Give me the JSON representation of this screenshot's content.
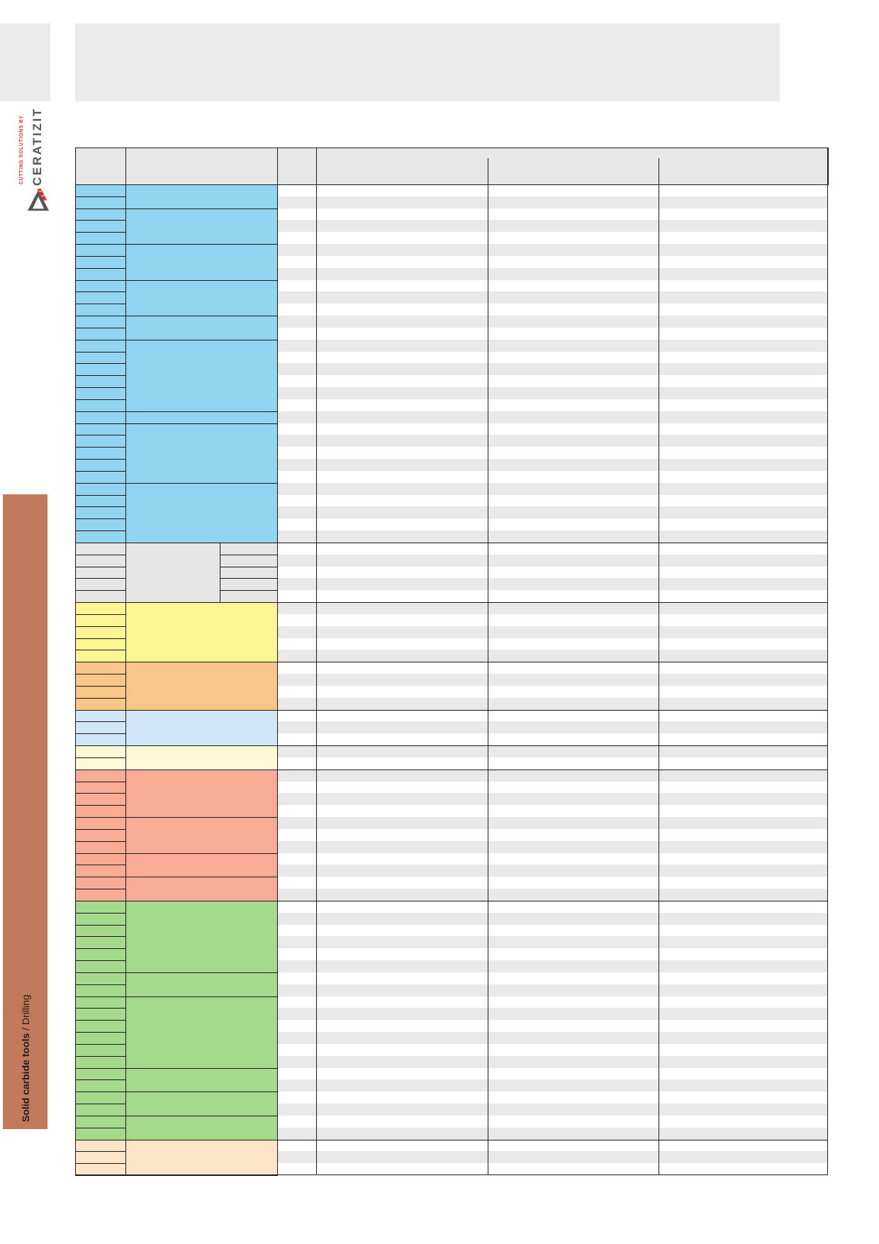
{
  "brand": {
    "tagline": "CUTTING SOLUTIONS BY",
    "name": "CERATIZIT",
    "tagline_color": "#e63329",
    "name_color": "#55565a"
  },
  "sidebar": {
    "label_bold": "Solid carbide tools",
    "label_regular": " / Drilling",
    "color": "#c27a5d",
    "text_color": "#1d1d1b"
  },
  "palette": {
    "page_background": "#ffffff",
    "panel_gray": "#ebebeb",
    "header_gray": "#e7e7e7",
    "stripe_gray": "#e9e9e9",
    "border": "#1a1a1a"
  },
  "table": {
    "columns": 6,
    "header_labels": [
      "",
      "",
      "",
      ""
    ],
    "body_rows": 83,
    "sections": [
      {
        "id": "blue",
        "color": "#93d4f1",
        "row_groups": [
          2,
          3,
          3,
          3,
          2,
          6,
          1,
          5,
          5
        ]
      },
      {
        "id": "gray",
        "color": "#e6e6e6",
        "row_groups": [
          5
        ],
        "col2_split": true
      },
      {
        "id": "yellow",
        "color": "#fdf494",
        "row_groups": [
          5
        ]
      },
      {
        "id": "orange",
        "color": "#f8c688",
        "row_groups": [
          4
        ]
      },
      {
        "id": "pale-blue",
        "color": "#cfe7f8",
        "row_groups": [
          3
        ]
      },
      {
        "id": "cream",
        "color": "#fdf9d8",
        "row_groups": [
          2
        ]
      },
      {
        "id": "salmon",
        "color": "#f8ac96",
        "row_groups": [
          4,
          3,
          2,
          2
        ]
      },
      {
        "id": "green",
        "color": "#a5da8c",
        "row_groups": [
          6,
          2,
          6,
          2,
          2,
          2
        ]
      },
      {
        "id": "peach",
        "color": "#fce4c8",
        "row_groups": [
          3
        ]
      }
    ]
  }
}
